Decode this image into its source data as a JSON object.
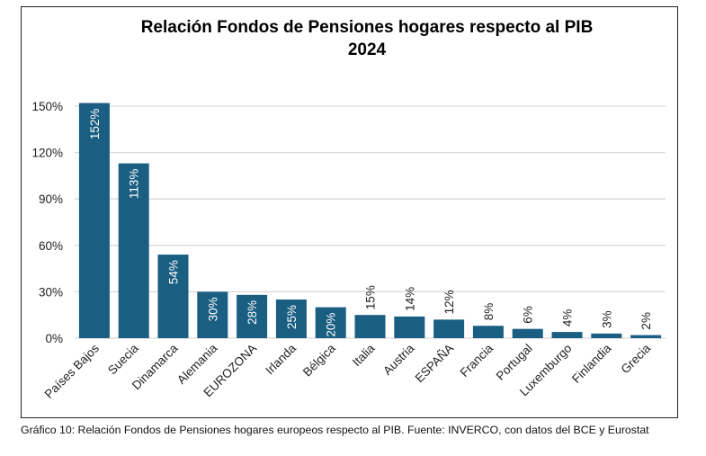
{
  "chart_data": {
    "type": "bar",
    "title": "Relación Fondos de Pensiones hogares respecto al PIB",
    "subtitle": "2024",
    "categories": [
      "Países Bajos",
      "Suecia",
      "Dinamarca",
      "Alemania",
      "EUROZONA",
      "Irlanda",
      "Bélgica",
      "Italia",
      "Austria",
      "ESPAÑA",
      "Francia",
      "Portugal",
      "Luxemburgo",
      "Finlandia",
      "Grecia"
    ],
    "values": [
      152,
      113,
      54,
      30,
      28,
      25,
      20,
      15,
      14,
      12,
      8,
      6,
      4,
      3,
      2
    ],
    "data_labels": [
      "152%",
      "113%",
      "54%",
      "30%",
      "28%",
      "25%",
      "20%",
      "15%",
      "14%",
      "12%",
      "8%",
      "6%",
      "4%",
      "3%",
      "2%"
    ],
    "ylim": [
      0,
      150
    ],
    "yticks": [
      0,
      30,
      60,
      90,
      120,
      150
    ],
    "ytick_labels": [
      "0%",
      "30%",
      "60%",
      "90%",
      "120%",
      "150%"
    ],
    "xlabel": "",
    "ylabel": "",
    "grid": true,
    "bar_color": "#1a5e82",
    "grid_color": "#d9d9d9"
  },
  "caption": "Gráfico 10: Relación Fondos de Pensiones hogares europeos respecto al PIB. Fuente: INVERCO, con datos del BCE y Eurostat"
}
